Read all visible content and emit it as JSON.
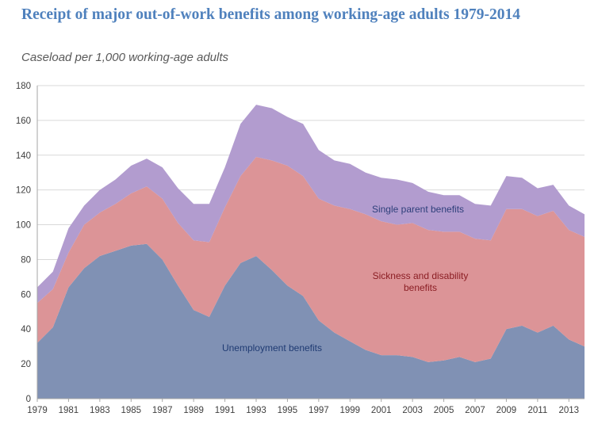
{
  "chart_data": {
    "type": "area",
    "stacked": true,
    "title": "Receipt of major out-of-work benefits among working-age adults 1979-2014",
    "subtitle": "Caseload per 1,000 working-age adults",
    "xlabel": "",
    "ylabel": "",
    "ylim": [
      0,
      180
    ],
    "yticks": [
      0,
      20,
      40,
      60,
      80,
      100,
      120,
      140,
      160,
      180
    ],
    "xlim": [
      1979,
      2014
    ],
    "xtick_labels": [
      "1979",
      "1981",
      "1983",
      "1985",
      "1987",
      "1989",
      "1991",
      "1993",
      "1995",
      "1997",
      "1999",
      "2001",
      "2003",
      "2005",
      "2007",
      "2009",
      "2011",
      "2013"
    ],
    "grid": true,
    "legend": "inline labels",
    "x": [
      1979,
      1980,
      1981,
      1982,
      1983,
      1984,
      1985,
      1986,
      1987,
      1988,
      1989,
      1990,
      1991,
      1992,
      1993,
      1994,
      1995,
      1996,
      1997,
      1998,
      1999,
      2000,
      2001,
      2002,
      2003,
      2004,
      2005,
      2006,
      2007,
      2008,
      2009,
      2010,
      2011,
      2012,
      2013,
      2014
    ],
    "series": [
      {
        "name": "Unemployment  benefits",
        "color": "#8091b4",
        "label_color": "#1f3b73",
        "values": [
          32,
          41,
          64,
          75,
          82,
          85,
          88,
          89,
          80,
          65,
          51,
          47,
          65,
          78,
          82,
          74,
          65,
          59,
          45,
          38,
          33,
          28,
          25,
          25,
          24,
          21,
          22,
          24,
          21,
          23,
          40,
          42,
          38,
          42,
          34,
          30
        ]
      },
      {
        "name": "Sickness and disability benefits",
        "label_lines": [
          "Sickness and disability",
          "benefits"
        ],
        "color": "#dc9497",
        "label_color": "#8b1e24",
        "values": [
          23,
          22,
          20,
          25,
          25,
          27,
          30,
          33,
          35,
          36,
          40,
          43,
          45,
          50,
          57,
          63,
          69,
          69,
          70,
          73,
          76,
          78,
          77,
          75,
          77,
          76,
          74,
          72,
          71,
          68,
          69,
          67,
          67,
          66,
          63,
          63
        ]
      },
      {
        "name": "Single parent benefits",
        "color": "#b29ccf",
        "label_color": "#2e3f7a",
        "values": [
          9,
          10,
          14,
          11,
          13,
          14,
          16,
          16,
          18,
          20,
          21,
          22,
          23,
          30,
          30,
          30,
          28,
          30,
          28,
          26,
          26,
          24,
          25,
          26,
          23,
          22,
          21,
          21,
          20,
          20,
          19,
          18,
          16,
          15,
          14,
          13
        ]
      }
    ]
  }
}
